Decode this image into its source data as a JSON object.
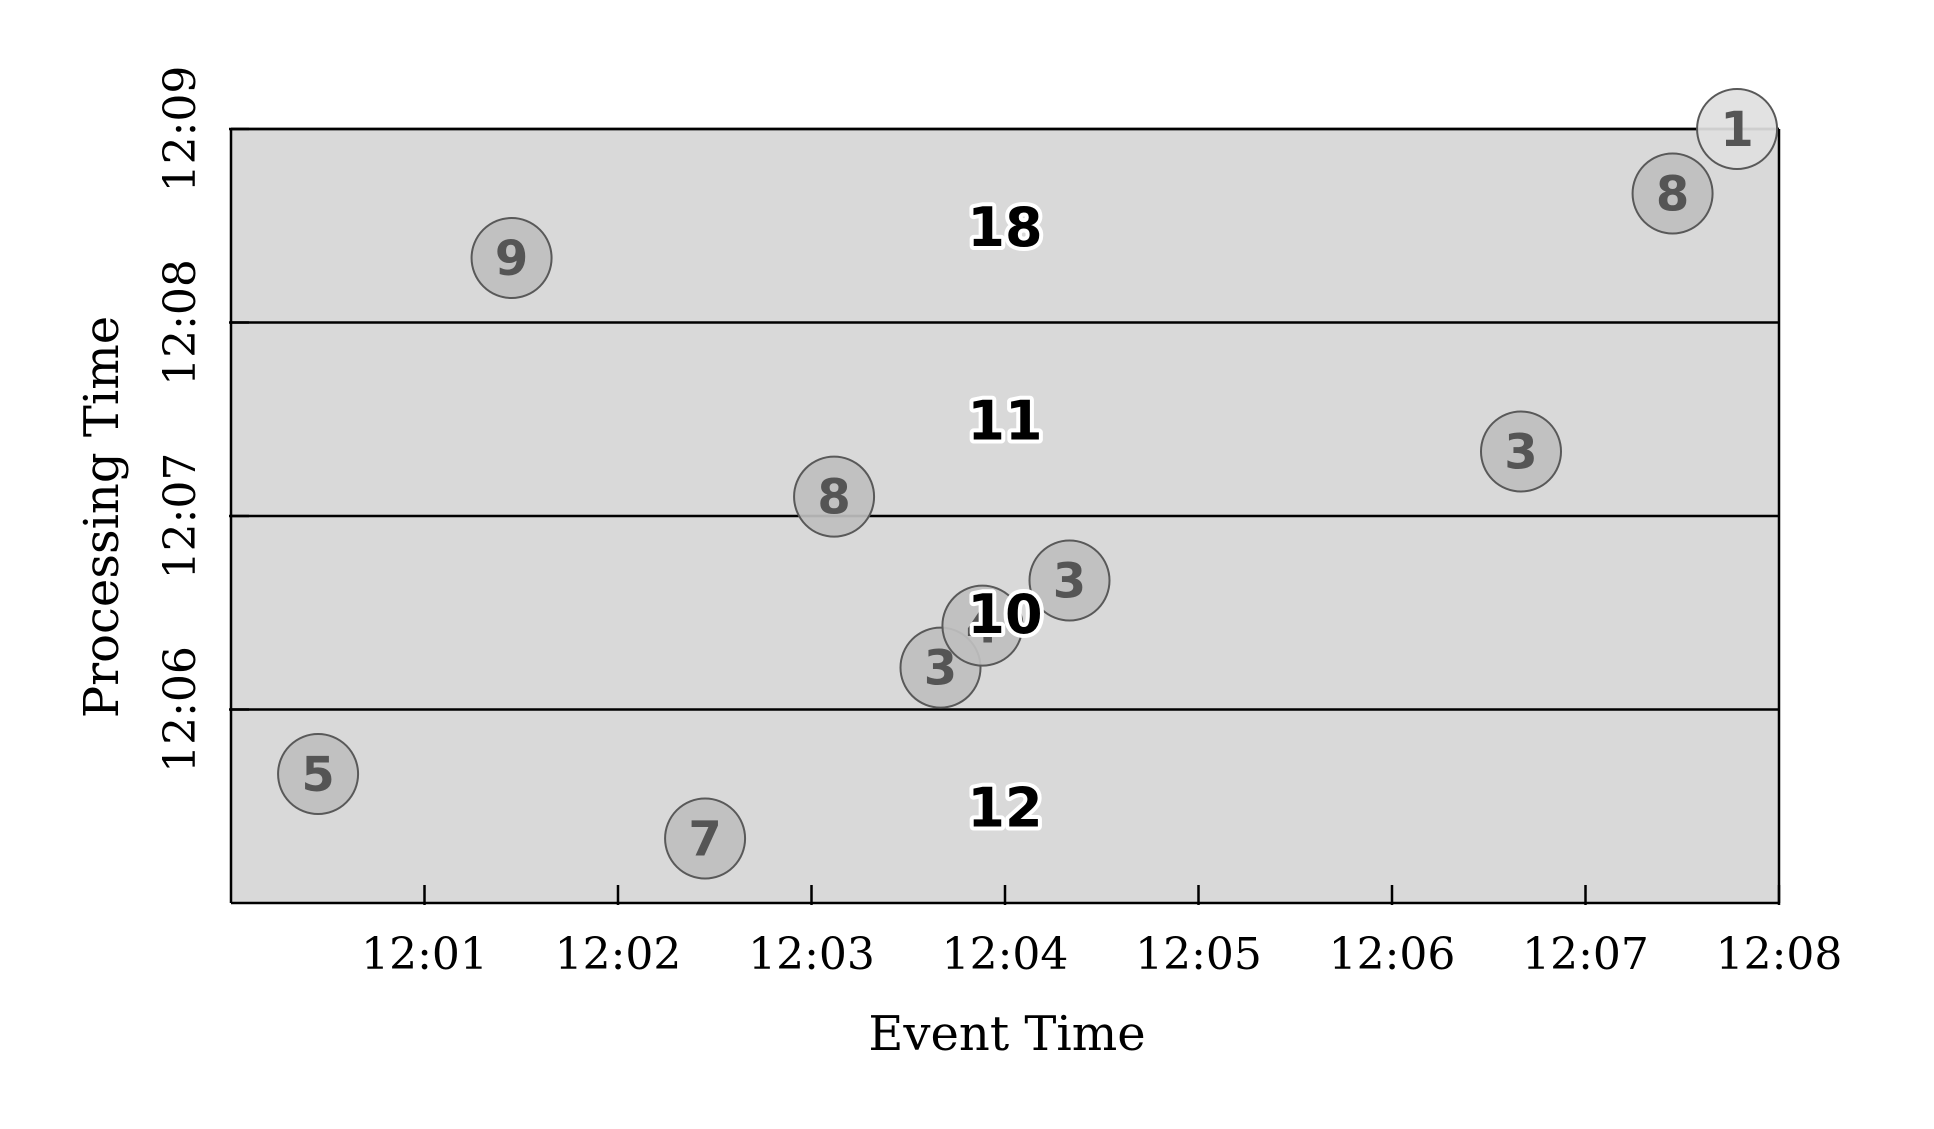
{
  "colors": {
    "plot_background": "#d9d9d9",
    "point_fill": "#bfbfbf",
    "point_fill_light": "#e0e0e0",
    "point_stroke": "#595959",
    "point_text": "#555555",
    "pane_text": "#000000",
    "axis": "#000000"
  },
  "chart_data": {
    "type": "scatter",
    "xlabel": "Event Time",
    "ylabel": "Processing Time",
    "xlim": [
      "12:00",
      "12:08"
    ],
    "ylim": [
      "12:05",
      "12:09"
    ],
    "x_ticks": [
      "12:01",
      "12:02",
      "12:03",
      "12:04",
      "12:05",
      "12:06",
      "12:07",
      "12:08"
    ],
    "y_ticks": [
      "12:06",
      "12:07",
      "12:08",
      "12:09"
    ],
    "grid": "horizontal lines at each processing-time tick",
    "points": [
      {
        "event_time": "12:00:27",
        "processing_time": "12:05:40",
        "value": "5"
      },
      {
        "event_time": "12:01:27",
        "processing_time": "12:08:20",
        "value": "9"
      },
      {
        "event_time": "12:02:27",
        "processing_time": "12:05:20",
        "value": "7"
      },
      {
        "event_time": "12:03:07",
        "processing_time": "12:07:06",
        "value": "8"
      },
      {
        "event_time": "12:03:40",
        "processing_time": "12:06:13",
        "value": "3"
      },
      {
        "event_time": "12:03:53",
        "processing_time": "12:06:26",
        "value": "4"
      },
      {
        "event_time": "12:04:20",
        "processing_time": "12:06:40",
        "value": "3"
      },
      {
        "event_time": "12:06:40",
        "processing_time": "12:07:20",
        "value": "3"
      },
      {
        "event_time": "12:07:27",
        "processing_time": "12:08:40",
        "value": "8"
      },
      {
        "event_time": "12:07:47",
        "processing_time": "12:09:00",
        "value": "1",
        "style": "light"
      }
    ],
    "pane_results": [
      {
        "processing_time": "12:05:30",
        "value": "12"
      },
      {
        "processing_time": "12:06:30",
        "value": "10"
      },
      {
        "processing_time": "12:07:30",
        "value": "11"
      },
      {
        "processing_time": "12:08:30",
        "value": "18"
      }
    ]
  }
}
